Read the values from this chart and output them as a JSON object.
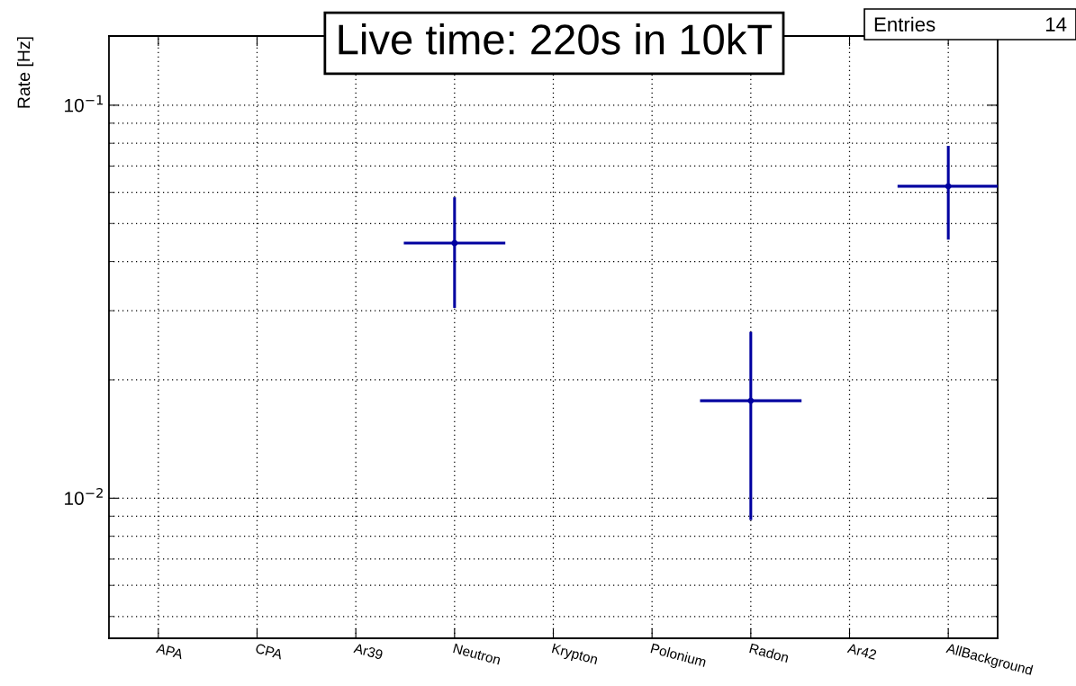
{
  "chart_data": {
    "type": "scatter",
    "title": "Live time: 220s in 10kT",
    "ylabel": "Rate [Hz]",
    "annotations": [
      "Entries",
      "14"
    ],
    "categories": [
      "APA",
      "CPA",
      "Ar39",
      "Neutron",
      "Krypton",
      "Polonium",
      "Radon",
      "Ar42",
      "AllBackground"
    ],
    "series": [
      {
        "color": "#0000a0",
        "values": [
          null,
          null,
          null,
          0.0446,
          null,
          null,
          0.0177,
          null,
          0.0622
        ],
        "errors": [
          null,
          null,
          null,
          [
            0.0305,
            0.0583
          ],
          null,
          null,
          [
            0.0088,
            0.0265
          ],
          null,
          [
            0.0455,
            0.0788
          ]
        ]
      }
    ],
    "log": "y",
    "ylim": [
      0.0044,
      0.15
    ],
    "yticks": [
      {
        "value": 0.01,
        "label": "10$^{−2}$"
      },
      {
        "value": 0.1,
        "label": "10$^{−1}$"
      }
    ],
    "grid": true,
    "marker": "circle"
  }
}
